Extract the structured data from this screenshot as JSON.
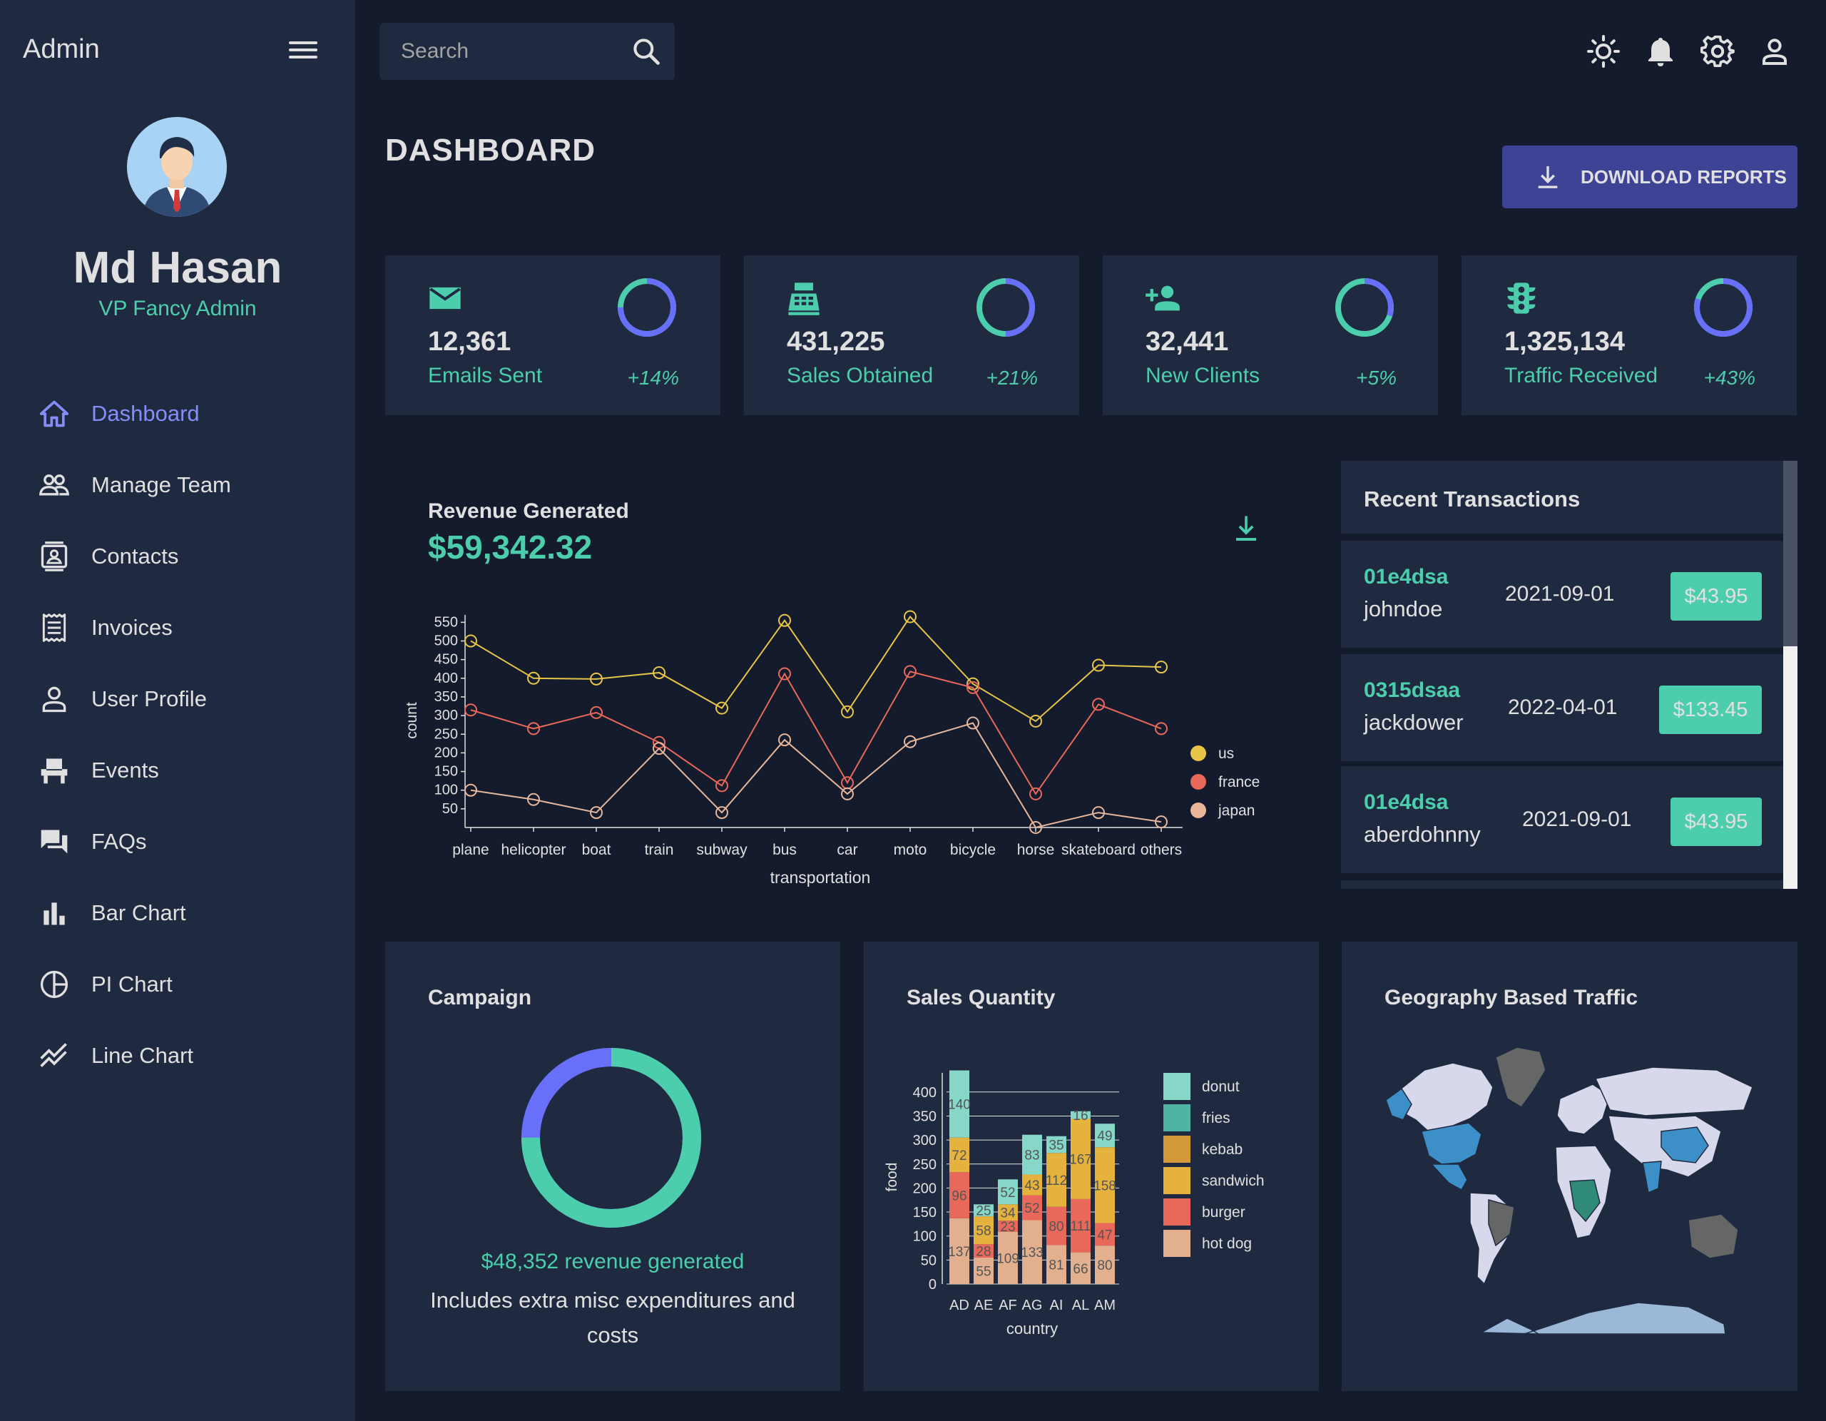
{
  "sidebar": {
    "brand": "Admin",
    "user_name": "Md Hasan",
    "user_role": "VP Fancy Admin",
    "items": [
      {
        "label": "Dashboard",
        "icon": "home-icon"
      },
      {
        "label": "Manage Team",
        "icon": "people-icon"
      },
      {
        "label": "Contacts",
        "icon": "contacts-icon"
      },
      {
        "label": "Invoices",
        "icon": "receipt-icon"
      },
      {
        "label": "User Profile",
        "icon": "person-icon"
      },
      {
        "label": "Events",
        "icon": "event-seat-icon"
      },
      {
        "label": "FAQs",
        "icon": "forum-icon"
      },
      {
        "label": "Bar Chart",
        "icon": "bar-chart-icon"
      },
      {
        "label": "PI Chart",
        "icon": "pie-chart-icon"
      },
      {
        "label": "Line Chart",
        "icon": "line-chart-icon"
      }
    ]
  },
  "topbar": {
    "search_placeholder": "Search",
    "icons": [
      "light-mode-icon",
      "notifications-icon",
      "settings-icon",
      "account-icon"
    ]
  },
  "header": {
    "title": "DASHBOARD",
    "download_label": "DOWNLOAD REPORTS"
  },
  "stats": [
    {
      "value": "12,361",
      "label": "Emails Sent",
      "increase": "+14%",
      "progress": 0.75,
      "icon": "email-icon"
    },
    {
      "value": "431,225",
      "label": "Sales Obtained",
      "increase": "+21%",
      "progress": 0.5,
      "icon": "point-of-sale-icon"
    },
    {
      "value": "32,441",
      "label": "New Clients",
      "increase": "+5%",
      "progress": 0.3,
      "icon": "person-add-icon"
    },
    {
      "value": "1,325,134",
      "label": "Traffic Received",
      "increase": "+43%",
      "progress": 0.8,
      "icon": "traffic-icon"
    }
  ],
  "revenue": {
    "title": "Revenue Generated",
    "value": "$59,342.32"
  },
  "transactions": {
    "title": "Recent Transactions",
    "rows": [
      {
        "id": "01e4dsa",
        "user": "johndoe",
        "date": "2021-09-01",
        "cost": "$43.95"
      },
      {
        "id": "0315dsaa",
        "user": "jackdower",
        "date": "2022-04-01",
        "cost": "$133.45"
      },
      {
        "id": "01e4dsa",
        "user": "aberdohnny",
        "date": "2021-09-01",
        "cost": "$43.95"
      }
    ]
  },
  "campaign": {
    "title": "Campaign",
    "revenue_text": "$48,352 revenue generated",
    "note": "Includes extra misc expenditures and costs",
    "progress": 0.75
  },
  "sales_quantity": {
    "title": "Sales Quantity"
  },
  "geography": {
    "title": "Geography Based Traffic"
  },
  "colors": {
    "accent_green": "#4cceac",
    "accent_blue": "#6870fa",
    "primary_bg": "#141b2d",
    "panel_bg": "#1f2a40",
    "button_bg": "#3e4396"
  },
  "chart_data": [
    {
      "type": "line",
      "xlabel": "transportation",
      "ylabel": "count",
      "categories": [
        "plane",
        "helicopter",
        "boat",
        "train",
        "subway",
        "bus",
        "car",
        "moto",
        "bicycle",
        "horse",
        "skateboard",
        "others"
      ],
      "yticks": [
        50,
        100,
        150,
        200,
        250,
        300,
        350,
        400,
        450,
        500,
        550
      ],
      "ylim": [
        0,
        570
      ],
      "legend": "right",
      "series": [
        {
          "name": "us",
          "color": "#e8c547",
          "values": [
            500,
            400,
            398,
            415,
            320,
            555,
            310,
            565,
            385,
            285,
            435,
            430
          ]
        },
        {
          "name": "france",
          "color": "#e8685a",
          "values": [
            315,
            265,
            308,
            228,
            112,
            412,
            120,
            418,
            375,
            90,
            330,
            265
          ]
        },
        {
          "name": "japan",
          "color": "#e6b79b",
          "values": [
            100,
            75,
            40,
            212,
            40,
            235,
            90,
            230,
            280,
            0,
            40,
            15
          ]
        }
      ]
    },
    {
      "type": "bar",
      "stacked": true,
      "xlabel": "country",
      "ylabel": "food",
      "categories": [
        "AD",
        "AE",
        "AF",
        "AG",
        "AI",
        "AL",
        "AM"
      ],
      "yticks": [
        0,
        50,
        100,
        150,
        200,
        250,
        300,
        350,
        400
      ],
      "ylim": [
        0,
        440
      ],
      "legend": "right",
      "series": [
        {
          "name": "hot dog",
          "color": "#e2b08f",
          "values": [
            137,
            55,
            109,
            133,
            81,
            66,
            80
          ]
        },
        {
          "name": "burger",
          "color": "#e8685a",
          "values": [
            96,
            28,
            23,
            52,
            80,
            111,
            47
          ]
        },
        {
          "name": "sandwich",
          "color": "#e5b33d",
          "values": [
            72,
            58,
            34,
            43,
            112,
            167,
            158
          ]
        },
        {
          "name": "kebab",
          "color": "#d49a3a",
          "values": [
            0,
            0,
            0,
            0,
            0,
            0,
            0
          ]
        },
        {
          "name": "fries",
          "color": "#4fb3a5",
          "values": [
            0,
            0,
            0,
            0,
            0,
            0,
            0
          ]
        },
        {
          "name": "donut",
          "color": "#86d7c7",
          "values": [
            140,
            25,
            52,
            83,
            35,
            16,
            49
          ]
        }
      ]
    }
  ]
}
